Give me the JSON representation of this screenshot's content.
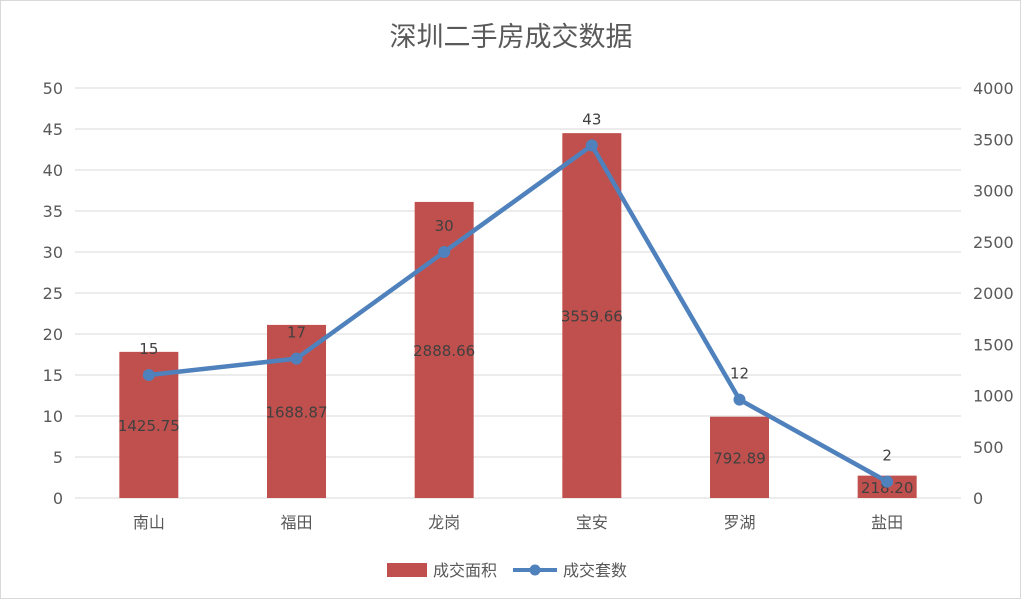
{
  "chart_data": {
    "type": "bar",
    "title": "深圳二手房成交数据",
    "categories": [
      "南山",
      "福田",
      "龙岗",
      "宝安",
      "罗湖",
      "盐田"
    ],
    "series": [
      {
        "name": "成交面积",
        "kind": "bar",
        "axis": "right",
        "color": "#c0504d",
        "values": [
          1425.75,
          1688.87,
          2888.66,
          3559.66,
          792.89,
          218.2
        ],
        "labels": [
          "1425.75",
          "1688.87",
          "2888.66",
          "3559.66",
          "792.89",
          "218.20"
        ]
      },
      {
        "name": "成交套数",
        "kind": "line",
        "axis": "left",
        "color": "#4f81bd",
        "values": [
          15,
          17,
          30,
          43,
          12,
          2
        ],
        "labels": [
          "15",
          "17",
          "30",
          "43",
          "12",
          "2"
        ]
      }
    ],
    "y_left": {
      "min": 0,
      "max": 50,
      "step": 5
    },
    "y_right": {
      "min": 0,
      "max": 4000,
      "step": 500
    },
    "grid": true,
    "legend_position": "bottom"
  }
}
